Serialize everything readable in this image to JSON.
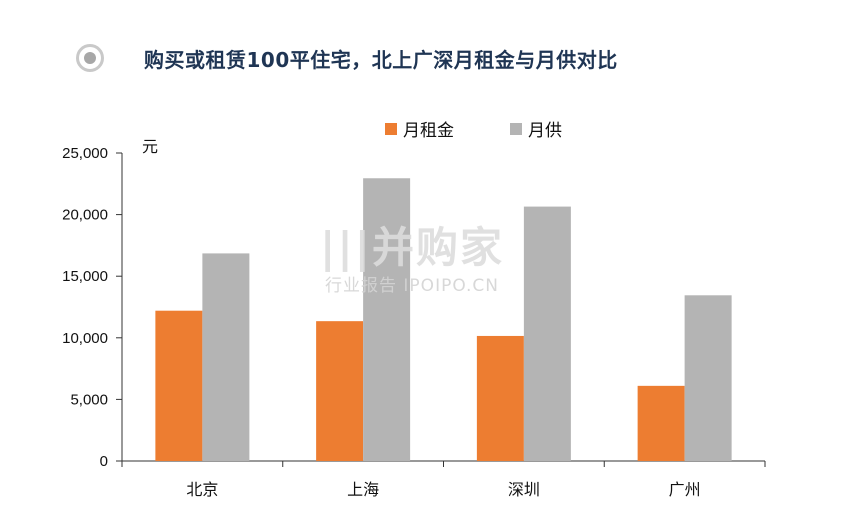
{
  "header": {
    "title": "购买或租赁100平住宅，北上广深月租金与月供对比",
    "icon": "radio-bullet-icon"
  },
  "watermark": {
    "main": "|||并购家",
    "sub": "行业报告 IPOIPO.CN"
  },
  "chart_data": {
    "type": "bar",
    "title": "",
    "ylabel": "元",
    "xlabel": "",
    "ylim": [
      0,
      25000
    ],
    "yticks": [
      "0",
      "5,000",
      "10,000",
      "15,000",
      "20,000",
      "25,000"
    ],
    "ytick_values": [
      0,
      5000,
      10000,
      15000,
      20000,
      25000
    ],
    "grid": false,
    "legend_position": "top",
    "categories": [
      "北京",
      "上海",
      "深圳",
      "广州"
    ],
    "series": [
      {
        "name": "月租金",
        "color": "#ed7d31",
        "values": [
          12200,
          11350,
          10150,
          6100
        ]
      },
      {
        "name": "月供",
        "color": "#b4b4b4",
        "values": [
          16850,
          22950,
          20650,
          13450
        ]
      }
    ]
  }
}
